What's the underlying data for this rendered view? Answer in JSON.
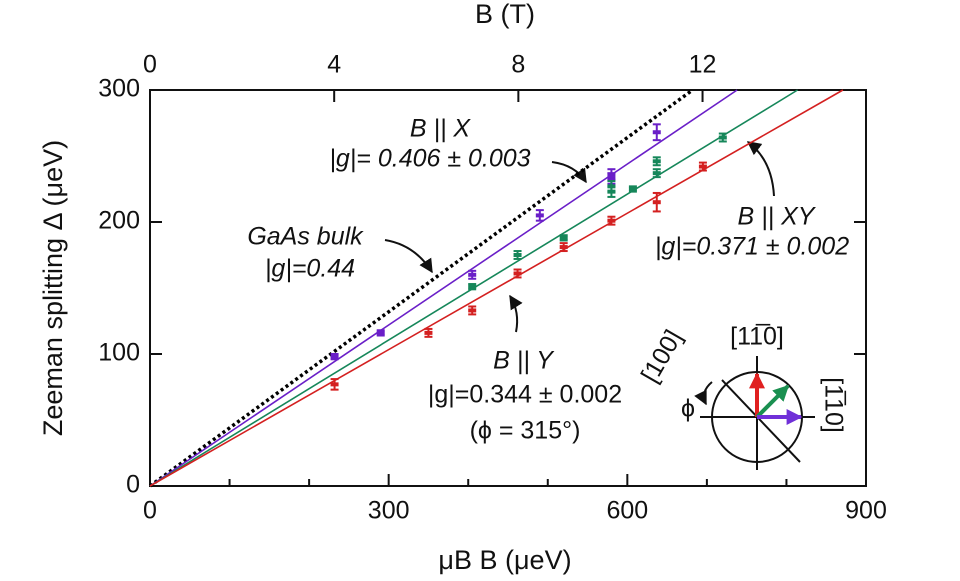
{
  "chart_data": {
    "type": "scatter",
    "x_label": "μB B (μeV)",
    "y_label": "Zeeman splitting Δ (μeV)",
    "top_label": "B (T)",
    "xlim": [
      0,
      900
    ],
    "xticks": [
      0,
      300,
      600,
      900
    ],
    "xticks_minor": [
      100,
      200,
      400,
      500,
      700,
      800
    ],
    "ylim": [
      0,
      300
    ],
    "yticks": [
      0,
      100,
      200,
      300
    ],
    "top_xlim": [
      0,
      15.55
    ],
    "top_xticks": [
      0,
      4,
      8,
      12
    ],
    "series": [
      {
        "color": "#6a1fc8",
        "x": [
          232,
          290,
          405,
          490,
          580,
          580,
          637
        ],
        "values": [
          98,
          116,
          160,
          205,
          233,
          236,
          268
        ],
        "errors": [
          2,
          2,
          3,
          4,
          4,
          4,
          6
        ]
      },
      {
        "color": "#16875a",
        "x": [
          405,
          462,
          520,
          580,
          580,
          607,
          637,
          637,
          720
        ],
        "values": [
          151,
          175,
          188,
          223,
          227,
          225,
          237,
          246,
          264
        ],
        "errors": [
          2,
          3,
          2,
          4,
          4,
          2,
          3,
          3,
          3
        ]
      },
      {
        "color": "#d42020",
        "x": [
          232,
          350,
          405,
          462,
          520,
          580,
          637,
          695
        ],
        "values": [
          77,
          116,
          133,
          161,
          181,
          201,
          215,
          242
        ],
        "errors": [
          4,
          3,
          3,
          3,
          3,
          3,
          7,
          3
        ]
      }
    ],
    "fits": [
      {
        "color": "#000000",
        "dotted": true,
        "x": [
          0,
          682
        ],
        "values": [
          0,
          300
        ]
      },
      {
        "color": "#6a1fc8",
        "dotted": false,
        "x": [
          0,
          738
        ],
        "values": [
          0,
          300
        ]
      },
      {
        "color": "#16875a",
        "dotted": false,
        "x": [
          0,
          814
        ],
        "values": [
          0,
          300
        ]
      },
      {
        "color": "#d42020",
        "dotted": false,
        "x": [
          0,
          871
        ],
        "values": [
          0,
          300
        ]
      }
    ],
    "annotations": [
      "B || X",
      "|g|= 0.406 ± 0.003",
      "GaAs bulk",
      "|g|=0.44",
      "B || XY",
      "|g|=0.371 ± 0.002",
      "B || Y",
      "|g|=0.344 ± 0.002",
      "(ϕ = 315°)"
    ],
    "inset_labels": [
      "[11̅0]",
      "[100]",
      "ϕ",
      "[1̅10]"
    ]
  }
}
